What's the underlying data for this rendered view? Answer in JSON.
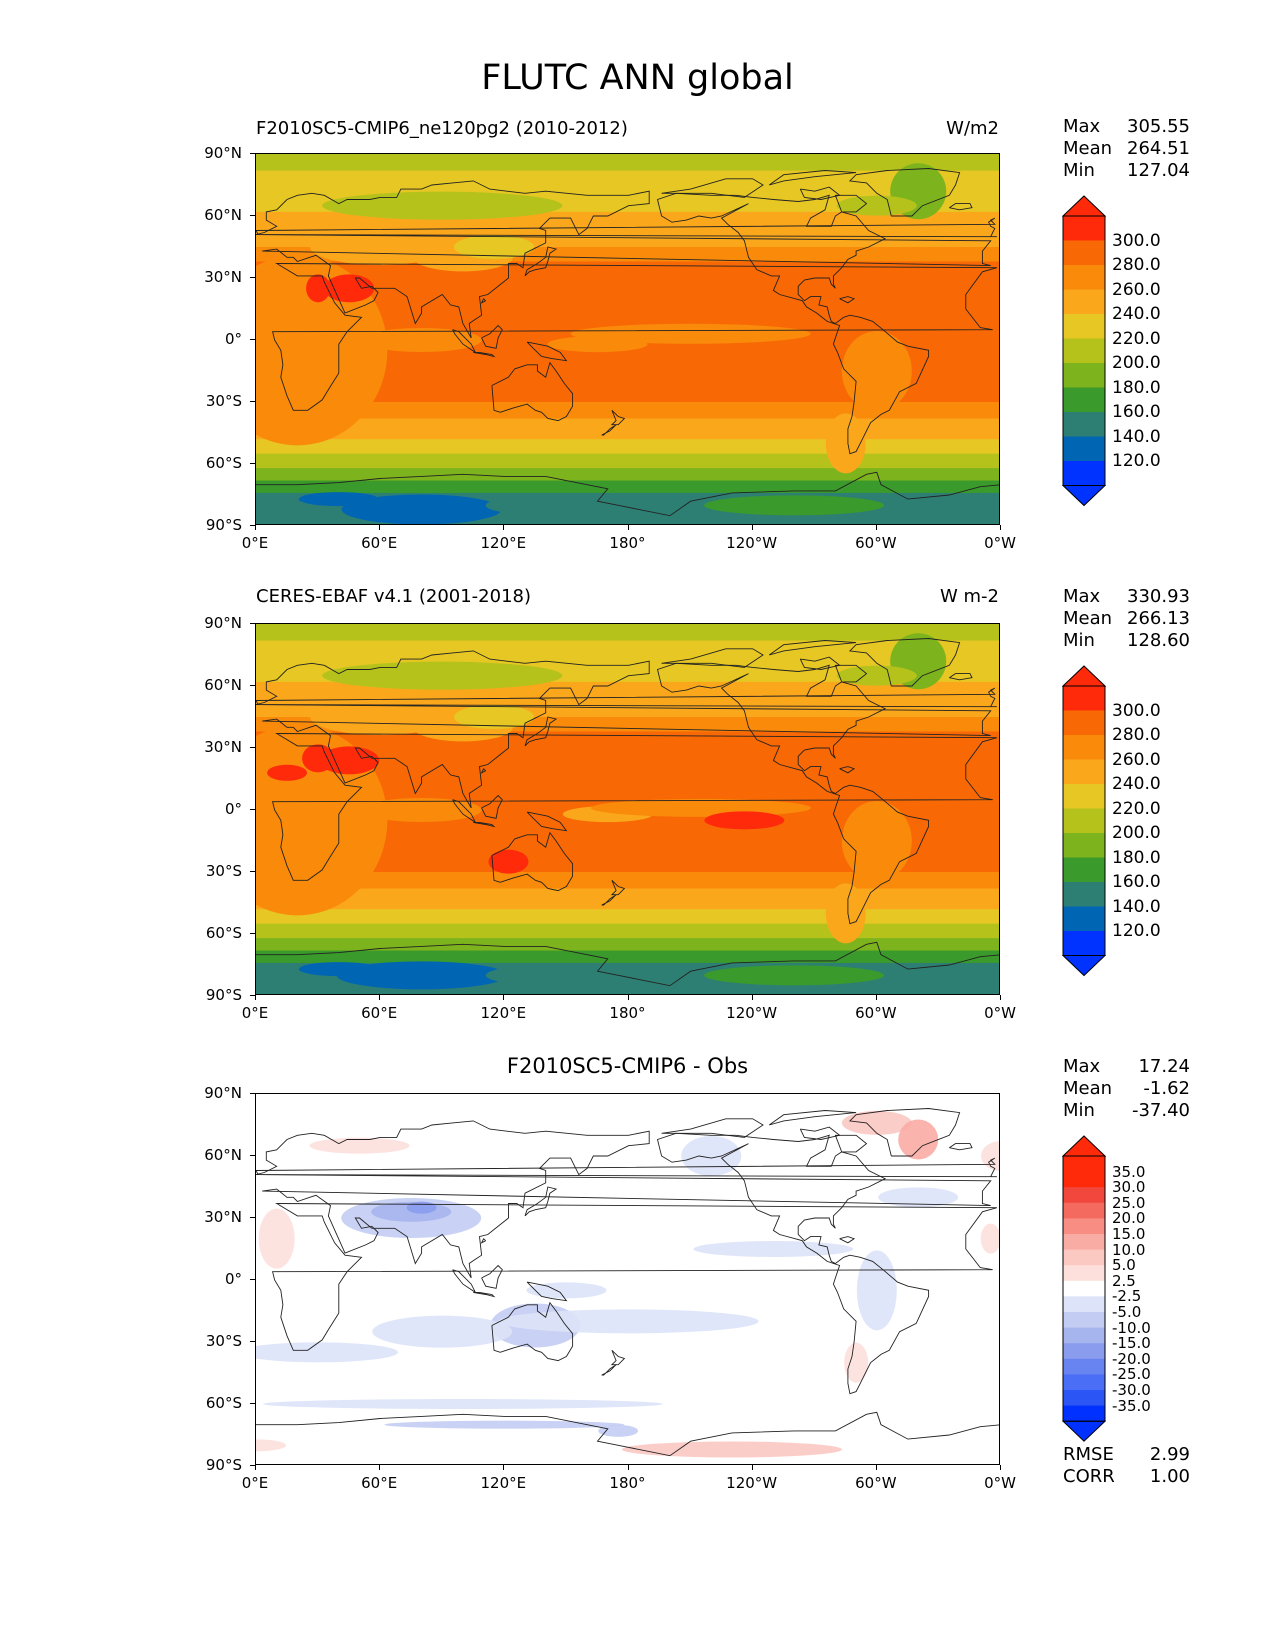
{
  "title": "FLUTC ANN global",
  "lat_labels": [
    "90°N",
    "60°N",
    "30°N",
    "0°",
    "30°S",
    "60°S",
    "90°S"
  ],
  "lon_labels": [
    "0°E",
    "60°E",
    "120°E",
    "180°",
    "120°W",
    "60°W",
    "0°W"
  ],
  "panels": [
    {
      "title_left": "F2010SC5-CMIP6_ne120pg2 (2010-2012)",
      "title_right": "W/m2",
      "stats": [
        {
          "label": "Max",
          "value": "305.55"
        },
        {
          "label": "Mean",
          "value": "264.51"
        },
        {
          "label": "Min",
          "value": "127.04"
        }
      ],
      "colorbar_labels": [
        "300.0",
        "280.0",
        "260.0",
        "240.0",
        "220.0",
        "200.0",
        "180.0",
        "160.0",
        "140.0",
        "120.0"
      ]
    },
    {
      "title_left": "CERES-EBAF v4.1 (2001-2018)",
      "title_right": "W m-2",
      "stats": [
        {
          "label": "Max",
          "value": "330.93"
        },
        {
          "label": "Mean",
          "value": "266.13"
        },
        {
          "label": "Min",
          "value": "128.60"
        }
      ],
      "colorbar_labels": [
        "300.0",
        "280.0",
        "260.0",
        "240.0",
        "220.0",
        "200.0",
        "180.0",
        "160.0",
        "140.0",
        "120.0"
      ]
    },
    {
      "title_center": "F2010SC5-CMIP6 - Obs",
      "stats": [
        {
          "label": "Max",
          "value": "17.24"
        },
        {
          "label": "Mean",
          "value": "-1.62"
        },
        {
          "label": "Min",
          "value": "-37.40"
        }
      ],
      "colorbar_labels": [
        "35.0",
        "30.0",
        "25.0",
        "20.0",
        "15.0",
        "10.0",
        "5.0",
        "2.5",
        "-2.5",
        "-5.0",
        "-10.0",
        "-15.0",
        "-20.0",
        "-25.0",
        "-30.0",
        "-35.0"
      ],
      "metrics": [
        {
          "label": "RMSE",
          "value": "2.99"
        },
        {
          "label": "CORR",
          "value": "1.00"
        }
      ]
    }
  ],
  "colors": {
    "field_scale": [
      "#0033ff",
      "#0066b3",
      "#2e7f73",
      "#3a9a2b",
      "#7db31c",
      "#b4c21b",
      "#e6c723",
      "#fba71c",
      "#fa8a0a",
      "#f86905",
      "#ff2a0a"
    ],
    "diff_scale": [
      "#0031ff",
      "#2c55f5",
      "#4a6ef5",
      "#6884f0",
      "#8a9cee",
      "#a7b5ef",
      "#c3cdf3",
      "#dde3f8",
      "#ffffff",
      "#fde0dc",
      "#fbc8c2",
      "#f9aca4",
      "#f78d83",
      "#f46a5f",
      "#f2473c",
      "#ff2a0a"
    ]
  }
}
